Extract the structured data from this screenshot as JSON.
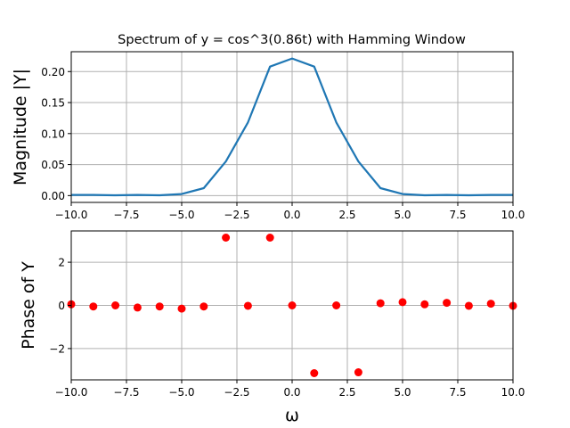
{
  "chart_data": [
    {
      "type": "line",
      "title": "Spectrum of y = cos^3(0.86t) with Hamming Window",
      "xlabel": "",
      "ylabel": "Magnitude |Y|",
      "xlim": [
        -10,
        10
      ],
      "ylim": [
        -0.011,
        0.232
      ],
      "grid": true,
      "x_ticks": [
        "−10.0",
        "−7.5",
        "−5.0",
        "−2.5",
        "0.0",
        "2.5",
        "5.0",
        "7.5",
        "10.0"
      ],
      "y_ticks": [
        "0.00",
        "0.05",
        "0.10",
        "0.15",
        "0.20"
      ],
      "series": [
        {
          "color": "#1f77b4",
          "x": [
            -10,
            -9,
            -8,
            -7,
            -6,
            -5,
            -4,
            -3,
            -2,
            -1,
            0,
            1,
            2,
            3,
            4,
            5,
            6,
            7,
            8,
            9,
            10
          ],
          "values": [
            0.001,
            0.001,
            0.0005,
            0.001,
            0.0005,
            0.0025,
            0.012,
            0.055,
            0.118,
            0.208,
            0.221,
            0.208,
            0.118,
            0.055,
            0.012,
            0.0025,
            0.0005,
            0.001,
            0.0005,
            0.001,
            0.001
          ]
        }
      ]
    },
    {
      "type": "scatter",
      "title": "",
      "xlabel": "ω",
      "ylabel": "Phase of Y",
      "xlim": [
        -10,
        10
      ],
      "ylim": [
        -3.45,
        3.45
      ],
      "grid": true,
      "x_ticks": [
        "−10.0",
        "−7.5",
        "−5.0",
        "−2.5",
        "0.0",
        "2.5",
        "5.0",
        "7.5",
        "10.0"
      ],
      "y_ticks": [
        "−2",
        "0",
        "2"
      ],
      "series": [
        {
          "color": "#ff0000",
          "x": [
            -10,
            -9,
            -8,
            -7,
            -6,
            -5,
            -4,
            -3,
            -2,
            -1,
            0,
            1,
            2,
            3,
            4,
            5,
            6,
            7,
            8,
            9,
            10
          ],
          "values": [
            0.05,
            -0.05,
            0.0,
            -0.1,
            -0.05,
            -0.15,
            -0.05,
            3.14,
            -0.02,
            3.14,
            0.0,
            -3.14,
            0.0,
            -3.1,
            0.1,
            0.15,
            0.05,
            0.12,
            -0.02,
            0.08,
            -0.02
          ]
        }
      ]
    }
  ]
}
